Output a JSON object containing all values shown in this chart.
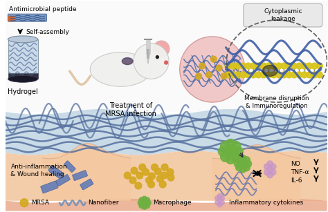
{
  "bg_color": "#ffffff",
  "top_bg": "#f5f5f5",
  "hydrogel_blue": "#b8cfe0",
  "skin_peach": "#f2c49b",
  "skin_pink_bottom": "#e8a585",
  "fiber_color": "#5872a0",
  "mrsa_color": "#d4a820",
  "macrophage_color": "#6db040",
  "inflam_color": "#c896c8",
  "text_labels": {
    "antimicrobial_peptide": "Antimicrobial peptide",
    "self_assembly": "Self-assembly",
    "hydrogel": "Hydrogel",
    "treatment": "Treatment of\nMRSA infection",
    "cytoplasmic": "Cytoplasmic\nleakage",
    "membrane": "Membrane disruption\n& Immunoregulation",
    "anti_inflammation": "Anti-inflammation\n& Wound healing",
    "no": "NO",
    "tnf": "TNF-α",
    "il6": "IL-6",
    "mrsa_label": "MRSA",
    "nanofiber_label": "Nanofiber",
    "macrophage_label": "Macrophage",
    "inflam_label": "Inflammatory cytokines"
  }
}
